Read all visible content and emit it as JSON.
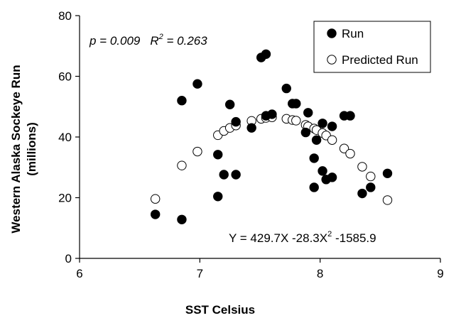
{
  "chart_data": {
    "type": "scatter",
    "xlabel": "SST Celsius",
    "ylabel_line1": "Western Alaska Sockeye Run",
    "ylabel_line2": "(millions)",
    "xlim": [
      6,
      9
    ],
    "ylim": [
      0,
      80
    ],
    "x_ticks": [
      "6",
      "7",
      "8",
      "9"
    ],
    "y_ticks": [
      "0",
      "20",
      "40",
      "60",
      "80"
    ],
    "grid": false,
    "legend_placement": "top-right",
    "annotations": {
      "stats_p": "p = 0.009",
      "stats_r2_label": "R",
      "stats_r2_exp": "2",
      "stats_r2_value": " = 0.263",
      "equation_part1": "Y = 429.7X -28.3X",
      "equation_exp": "2",
      "equation_part2": " -1585.9"
    },
    "series": [
      {
        "name": "Run",
        "marker": "filled-circle",
        "color": "#000000",
        "points": [
          [
            6.63,
            14.5
          ],
          [
            6.85,
            52.0
          ],
          [
            6.85,
            12.8
          ],
          [
            6.98,
            57.5
          ],
          [
            7.15,
            34.2
          ],
          [
            7.15,
            20.4
          ],
          [
            7.2,
            27.6
          ],
          [
            7.25,
            50.7
          ],
          [
            7.3,
            27.6
          ],
          [
            7.3,
            45.0
          ],
          [
            7.43,
            43.0
          ],
          [
            7.51,
            66.2
          ],
          [
            7.55,
            67.3
          ],
          [
            7.55,
            47.0
          ],
          [
            7.6,
            47.5
          ],
          [
            7.72,
            56.0
          ],
          [
            7.77,
            51.0
          ],
          [
            7.8,
            51.0
          ],
          [
            7.88,
            41.5
          ],
          [
            7.9,
            48.0
          ],
          [
            7.95,
            33.0
          ],
          [
            7.95,
            23.4
          ],
          [
            7.97,
            39.0
          ],
          [
            8.02,
            44.5
          ],
          [
            8.02,
            28.8
          ],
          [
            8.05,
            26.0
          ],
          [
            8.1,
            43.5
          ],
          [
            8.1,
            26.7
          ],
          [
            8.2,
            47.0
          ],
          [
            8.25,
            47.0
          ],
          [
            8.35,
            21.4
          ],
          [
            8.42,
            23.4
          ],
          [
            8.56,
            28.0
          ]
        ]
      },
      {
        "name": "Predicted Run",
        "marker": "open-circle",
        "color": "#000000",
        "points": [
          [
            6.63,
            19.6
          ],
          [
            6.85,
            30.6
          ],
          [
            6.98,
            35.2
          ],
          [
            7.15,
            40.6
          ],
          [
            7.2,
            42.0
          ],
          [
            7.25,
            43.0
          ],
          [
            7.3,
            43.8
          ],
          [
            7.43,
            45.3
          ],
          [
            7.51,
            46.0
          ],
          [
            7.55,
            46.3
          ],
          [
            7.6,
            46.5
          ],
          [
            7.72,
            46.0
          ],
          [
            7.77,
            45.6
          ],
          [
            7.8,
            45.4
          ],
          [
            7.88,
            44.0
          ],
          [
            7.9,
            43.5
          ],
          [
            7.95,
            42.8
          ],
          [
            7.97,
            42.3
          ],
          [
            8.02,
            41.3
          ],
          [
            8.05,
            40.5
          ],
          [
            8.1,
            39.0
          ],
          [
            8.2,
            36.2
          ],
          [
            8.25,
            34.5
          ],
          [
            8.35,
            30.2
          ],
          [
            8.42,
            27.0
          ],
          [
            8.56,
            19.2
          ]
        ]
      }
    ]
  }
}
